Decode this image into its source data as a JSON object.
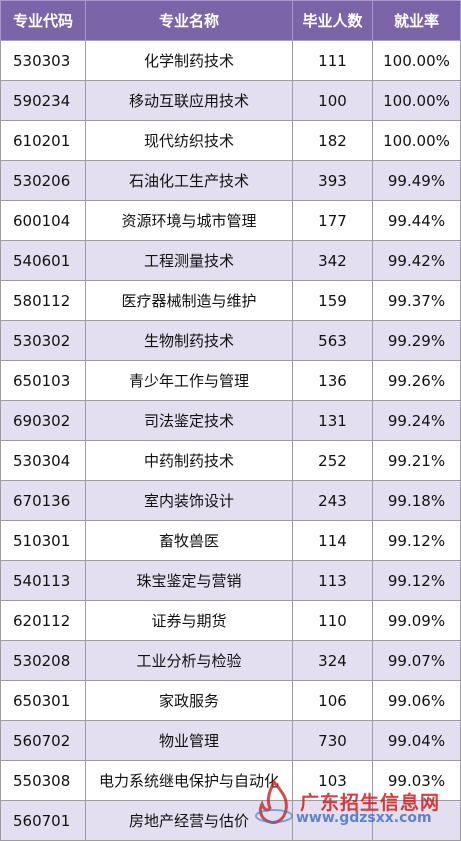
{
  "table": {
    "headers": [
      "专业代码",
      "专业名称",
      "毕业人数",
      "就业率"
    ],
    "rows": [
      [
        "530303",
        "化学制药技术",
        "111",
        "100.00%"
      ],
      [
        "590234",
        "移动互联应用技术",
        "100",
        "100.00%"
      ],
      [
        "610201",
        "现代纺织技术",
        "182",
        "100.00%"
      ],
      [
        "530206",
        "石油化工生产技术",
        "393",
        "99.49%"
      ],
      [
        "600104",
        "资源环境与城市管理",
        "177",
        "99.44%"
      ],
      [
        "540601",
        "工程测量技术",
        "342",
        "99.42%"
      ],
      [
        "580112",
        "医疗器械制造与维护",
        "159",
        "99.37%"
      ],
      [
        "530302",
        "生物制药技术",
        "563",
        "99.29%"
      ],
      [
        "650103",
        "青少年工作与管理",
        "136",
        "99.26%"
      ],
      [
        "690302",
        "司法鉴定技术",
        "131",
        "99.24%"
      ],
      [
        "530304",
        "中药制药技术",
        "252",
        "99.21%"
      ],
      [
        "670136",
        "室内装饰设计",
        "243",
        "99.18%"
      ],
      [
        "510301",
        "畜牧兽医",
        "114",
        "99.12%"
      ],
      [
        "540113",
        "珠宝鉴定与营销",
        "113",
        "99.12%"
      ],
      [
        "620112",
        "证券与期货",
        "110",
        "99.09%"
      ],
      [
        "530208",
        "工业分析与检验",
        "324",
        "99.07%"
      ],
      [
        "650301",
        "家政服务",
        "106",
        "99.06%"
      ],
      [
        "560702",
        "物业管理",
        "730",
        "99.04%"
      ],
      [
        "550308",
        "电力系统继电保护与自动化",
        "103",
        "99.03%"
      ],
      [
        "560701",
        "房地产经营与估价",
        "",
        ""
      ]
    ]
  },
  "watermark": {
    "title": "广东招生信息网",
    "url": "www.gdzsxx.com",
    "colors": {
      "title": "#cd1e1e",
      "url": "#285abe",
      "logo": "#c82020"
    },
    "icon": "flame-logo-icon"
  },
  "colors": {
    "header_bg": "#7b64a8",
    "row_alt_bg": "#e4dff0",
    "border": "#9c9c9c"
  }
}
